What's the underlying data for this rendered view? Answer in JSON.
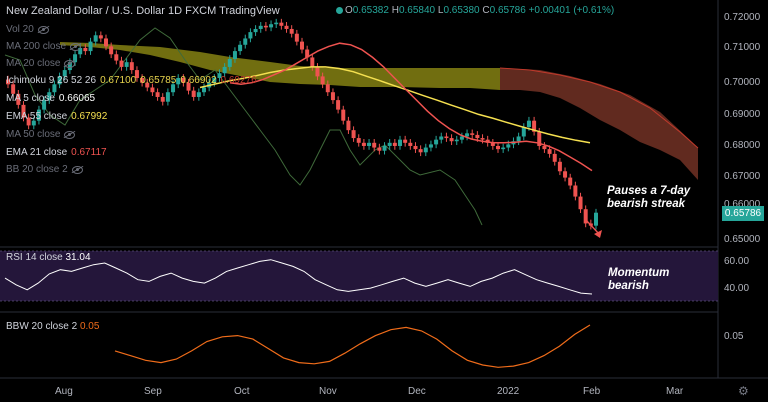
{
  "header": {
    "title": "New Zealand Dollar / U.S. Dollar  1D  FXCM  TradingView",
    "ohlc_prefix": "O",
    "open": "0.65382",
    "high_prefix": "H",
    "high": "0.65840",
    "low_prefix": "L",
    "low": "0.65380",
    "close_prefix": "C",
    "close": "0.65786",
    "change": "+0.00401 (+0.61%)"
  },
  "legend": {
    "vol": "Vol 20",
    "ma200": "MA 200 close",
    "ma20": "MA 20 close",
    "ichimoku": "Ichimoku 9 26 52 26",
    "ichimoku_values": [
      "0.67100",
      "0.65785",
      "0.66902",
      "0.69276"
    ],
    "ma5": "MA 5 close",
    "ma5_value": "0.66065",
    "ema55": "EMA 55 close",
    "ema55_value": "0.67992",
    "ma50": "MA 50 close",
    "ema21": "EMA 21 close",
    "ema21_value": "0.67117",
    "bb20": "BB 20 close 2"
  },
  "colors": {
    "up": "#26a69a",
    "down": "#ef5350",
    "ema55": "#f5e050",
    "ema21": "#ef5350",
    "ma5": "#ffffff",
    "cloud_bull": "#7d7a12",
    "cloud_bear": "#6b2f22",
    "lagging": "#3f6a3a",
    "rsi": "#ffffff",
    "bbw": "#ef6c1a"
  },
  "price_axis": [
    "0.72000",
    "0.71000",
    "0.70000",
    "0.69000",
    "0.68000",
    "0.67000",
    "0.66000",
    "0.65000"
  ],
  "last_price": "0.65786",
  "time_axis": [
    "Aug",
    "Sep",
    "Oct",
    "Nov",
    "Dec",
    "2022",
    "Feb",
    "Mar"
  ],
  "annotations": {
    "price": [
      "Pauses a 7-day",
      "bearish streak"
    ],
    "rsi": [
      "Momentum",
      "bearish"
    ]
  },
  "rsi": {
    "label": "RSI 14 close",
    "value": "31.04",
    "axis": [
      "60.00",
      "40.00"
    ]
  },
  "bbw": {
    "label": "BBW 20 close 2",
    "value": "0.05",
    "axis": [
      "0.05"
    ]
  },
  "chart_data": {
    "type": "candlestick",
    "symbol": "NZDUSD",
    "timeframe": "1D",
    "ylim": [
      0.648,
      0.722
    ],
    "closes": [
      0.6985,
      0.6955,
      0.692,
      0.688,
      0.6855,
      0.687,
      0.6905,
      0.6935,
      0.696,
      0.6985,
      0.701,
      0.703,
      0.7055,
      0.708,
      0.71,
      0.709,
      0.712,
      0.714,
      0.713,
      0.7105,
      0.708,
      0.706,
      0.704,
      0.7055,
      0.703,
      0.7005,
      0.699,
      0.6975,
      0.696,
      0.6945,
      0.693,
      0.696,
      0.6985,
      0.7005,
      0.699,
      0.6965,
      0.6945,
      0.696,
      0.6975,
      0.699,
      0.7005,
      0.702,
      0.704,
      0.7065,
      0.709,
      0.711,
      0.713,
      0.715,
      0.716,
      0.717,
      0.7165,
      0.7175,
      0.718,
      0.717,
      0.716,
      0.7145,
      0.712,
      0.7095,
      0.707,
      0.704,
      0.701,
      0.6985,
      0.696,
      0.6935,
      0.6905,
      0.687,
      0.684,
      0.6815,
      0.68,
      0.679,
      0.68,
      0.6785,
      0.6775,
      0.679,
      0.68,
      0.679,
      0.681,
      0.68,
      0.679,
      0.678,
      0.677,
      0.6785,
      0.6795,
      0.681,
      0.682,
      0.6815,
      0.6805,
      0.681,
      0.682,
      0.683,
      0.6825,
      0.6815,
      0.681,
      0.68,
      0.679,
      0.678,
      0.6785,
      0.6795,
      0.6805,
      0.682,
      0.685,
      0.687,
      0.6835,
      0.679,
      0.678,
      0.6765,
      0.674,
      0.671,
      0.669,
      0.6665,
      0.663,
      0.659,
      0.6545,
      0.6538,
      0.6579
    ],
    "ema55": [
      0.6975,
      0.6985,
      0.6995,
      0.7003,
      0.7012,
      0.7022,
      0.703,
      0.7035,
      0.704,
      0.704,
      0.7035,
      0.7025,
      0.701,
      0.6995,
      0.698,
      0.6965,
      0.695,
      0.6935,
      0.692,
      0.6905,
      0.689,
      0.6878,
      0.6865,
      0.6852,
      0.684,
      0.6828,
      0.6817,
      0.6808,
      0.68
    ],
    "ema21": [
      0.699,
      0.6985,
      0.699,
      0.7,
      0.7015,
      0.703,
      0.705,
      0.707,
      0.709,
      0.7105,
      0.7115,
      0.711,
      0.7095,
      0.707,
      0.704,
      0.7005,
      0.697,
      0.6935,
      0.69,
      0.687,
      0.6845,
      0.6825,
      0.6812,
      0.6805,
      0.68,
      0.68,
      0.6802,
      0.6805,
      0.68,
      0.679,
      0.6775,
      0.6755,
      0.6735,
      0.6712
    ],
    "rsi": [
      50,
      42,
      36,
      44,
      55,
      60,
      58,
      62,
      66,
      68,
      62,
      56,
      48,
      46,
      52,
      56,
      50,
      46,
      44,
      50,
      58,
      62,
      66,
      70,
      72,
      68,
      64,
      58,
      48,
      42,
      36,
      34,
      36,
      38,
      42,
      46,
      50,
      44,
      40,
      44,
      48,
      44,
      40,
      46,
      50,
      56,
      60,
      54,
      48,
      44,
      40,
      36,
      32,
      31
    ],
    "bbw": [
      0.03,
      0.026,
      0.022,
      0.02,
      0.023,
      0.03,
      0.038,
      0.042,
      0.043,
      0.04,
      0.032,
      0.024,
      0.02,
      0.019,
      0.021,
      0.028,
      0.036,
      0.043,
      0.048,
      0.05,
      0.047,
      0.04,
      0.03,
      0.022,
      0.018,
      0.016,
      0.017,
      0.02,
      0.026,
      0.034,
      0.044,
      0.052
    ]
  }
}
